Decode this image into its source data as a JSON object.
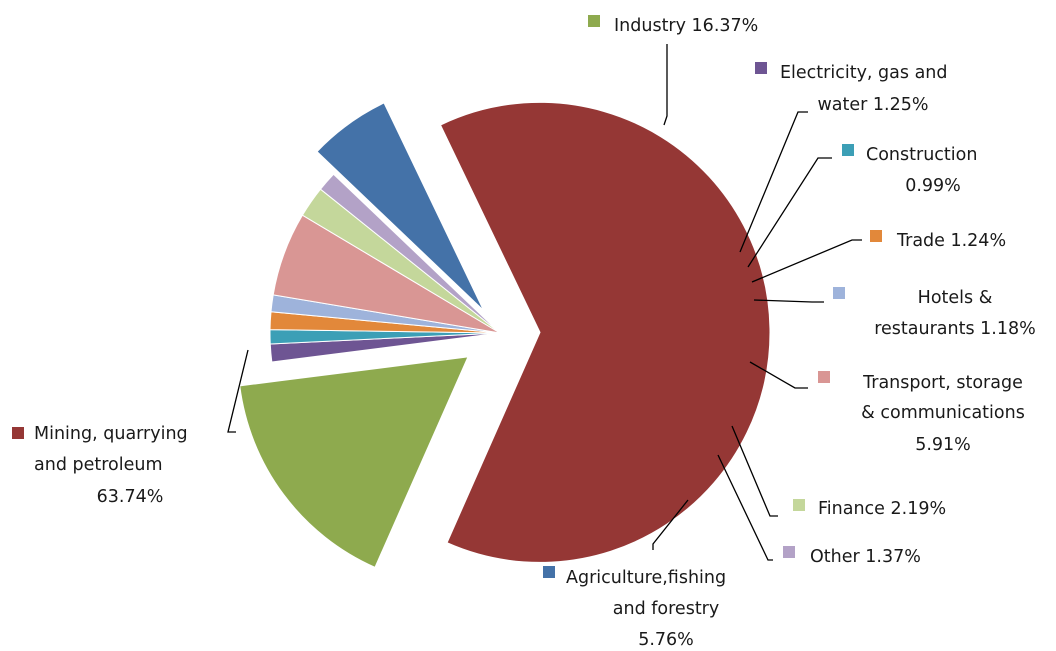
{
  "chart_data": {
    "type": "pie",
    "title": "",
    "slices": [
      {
        "key": "mining",
        "label_lines": [
          "Mining, quarrying",
          "and petroleum",
          "63.74%"
        ],
        "value": 63.74,
        "color": "#953735",
        "exploded": true
      },
      {
        "key": "industry",
        "label_lines": [
          "Industry 16.37%"
        ],
        "value": 16.37,
        "color": "#8EAA4E",
        "exploded": true
      },
      {
        "key": "electricity",
        "label_lines": [
          "Electricity, gas and",
          "water 1.25%"
        ],
        "value": 1.25,
        "color": "#6E5593",
        "exploded": false
      },
      {
        "key": "construction",
        "label_lines": [
          "Construction",
          "0.99%"
        ],
        "value": 0.99,
        "color": "#3C9FB6",
        "exploded": false
      },
      {
        "key": "trade",
        "label_lines": [
          "Trade 1.24%"
        ],
        "value": 1.24,
        "color": "#E2883A",
        "exploded": false
      },
      {
        "key": "hotels",
        "label_lines": [
          "Hotels &",
          "restaurants 1.18%"
        ],
        "value": 1.18,
        "color": "#9EB3DB",
        "exploded": false
      },
      {
        "key": "transport",
        "label_lines": [
          "Transport, storage",
          "& communications",
          "5.91%"
        ],
        "value": 5.91,
        "color": "#D99694",
        "exploded": false
      },
      {
        "key": "finance",
        "label_lines": [
          "Finance 2.19%"
        ],
        "value": 2.19,
        "color": "#C4D79B",
        "exploded": false
      },
      {
        "key": "other",
        "label_lines": [
          "Other 1.37%"
        ],
        "value": 1.37,
        "color": "#B3A2C7",
        "exploded": false
      },
      {
        "key": "agriculture",
        "label_lines": [
          "Agriculture,fishing",
          "and forestry",
          "5.76%"
        ],
        "value": 5.76,
        "color": "#4472A8",
        "exploded": true
      }
    ]
  }
}
